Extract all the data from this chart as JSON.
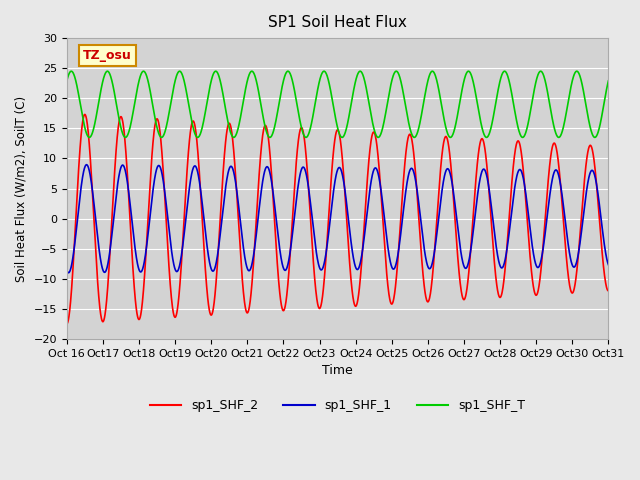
{
  "title": "SP1 Soil Heat Flux",
  "xlabel": "Time",
  "ylabel": "Soil Heat Flux (W/m2), SoilT (C)",
  "ylim": [
    -20,
    30
  ],
  "background_color": "#e8e8e8",
  "plot_bg_color": "#d3d3d3",
  "tick_labels": [
    "Oct 16",
    "Oct 17",
    "Oct 18",
    "Oct 19",
    "Oct 20",
    "Oct 21",
    "Oct 22",
    "Oct 23",
    "Oct 24",
    "Oct 25",
    "Oct 26",
    "Oct 27",
    "Oct 28",
    "Oct 29",
    "Oct 30",
    "Oct 31"
  ],
  "legend_labels": [
    "sp1_SHF_2",
    "sp1_SHF_1",
    "sp1_SHF_T"
  ],
  "legend_colors": [
    "#ff0000",
    "#0000cc",
    "#00cc00"
  ],
  "tz_label": "TZ_osu",
  "tz_bg": "#ffffcc",
  "tz_border": "#cc8800",
  "tz_text_color": "#cc0000",
  "num_days": 16,
  "shf2_amp_early": 17.5,
  "shf2_amp_late": 12.0,
  "shf1_amp_early": 9.0,
  "shf1_amp_late": 8.0,
  "shft_mean": 19.0,
  "shft_amp": 5.5,
  "yticks": [
    -20,
    -15,
    -10,
    -5,
    0,
    5,
    10,
    15,
    20,
    25,
    30
  ]
}
